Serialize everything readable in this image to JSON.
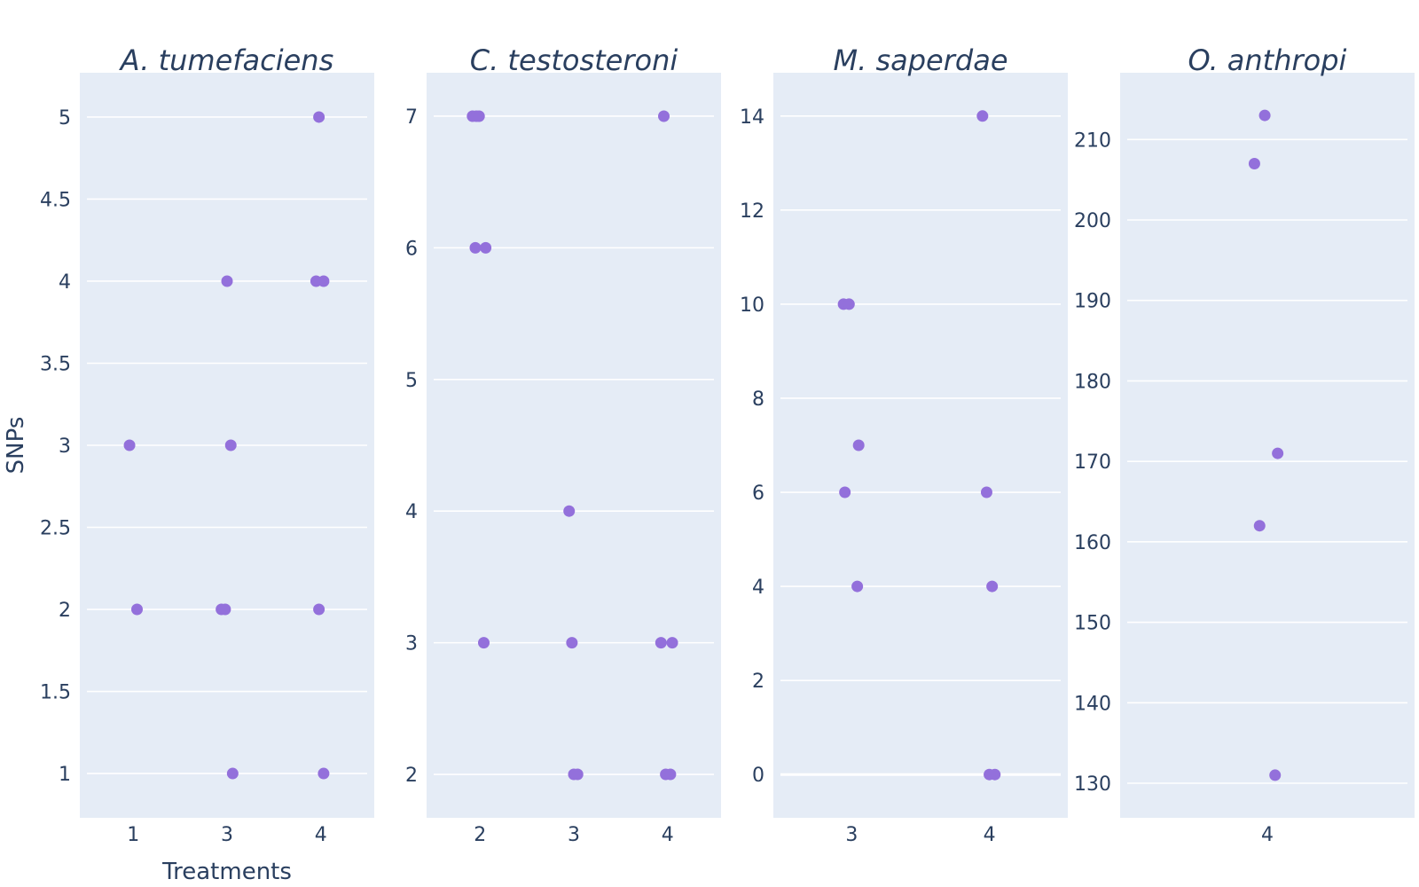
{
  "chart_data": {
    "type": "scatter",
    "xlabel": "Treatments",
    "ylabel": "SNPs",
    "marker_color": "#9370db",
    "panels": [
      {
        "title": "A. tumefaciens",
        "x_categories": [
          "1",
          "3",
          "4"
        ],
        "ylim": [
          0.73,
          5.27
        ],
        "yticks": [
          1,
          1.5,
          2,
          2.5,
          3,
          3.5,
          4,
          4.5,
          5
        ],
        "ytick_labels": [
          "1",
          "1.5",
          "2",
          "2.5",
          "3",
          "3.5",
          "4",
          "4.5",
          "5"
        ],
        "points": [
          {
            "x": "1",
            "y": 3,
            "jitter": -0.04
          },
          {
            "x": "1",
            "y": 2,
            "jitter": 0.04
          },
          {
            "x": "3",
            "y": 4,
            "jitter": 0.0
          },
          {
            "x": "3",
            "y": 3,
            "jitter": 0.04
          },
          {
            "x": "3",
            "y": 2,
            "jitter": -0.06
          },
          {
            "x": "3",
            "y": 2,
            "jitter": -0.02
          },
          {
            "x": "3",
            "y": 1,
            "jitter": 0.06
          },
          {
            "x": "4",
            "y": 5,
            "jitter": -0.02
          },
          {
            "x": "4",
            "y": 4,
            "jitter": -0.05
          },
          {
            "x": "4",
            "y": 4,
            "jitter": 0.03
          },
          {
            "x": "4",
            "y": 2,
            "jitter": -0.02
          },
          {
            "x": "4",
            "y": 1,
            "jitter": 0.03
          }
        ]
      },
      {
        "title": "C. testosteroni",
        "x_categories": [
          "2",
          "3",
          "4"
        ],
        "ylim": [
          1.67,
          7.33
        ],
        "yticks": [
          2,
          3,
          4,
          5,
          6,
          7
        ],
        "ytick_labels": [
          "2",
          "3",
          "4",
          "5",
          "6",
          "7"
        ],
        "points": [
          {
            "x": "2",
            "y": 7,
            "jitter": -0.08
          },
          {
            "x": "2",
            "y": 7,
            "jitter": -0.04
          },
          {
            "x": "2",
            "y": 7,
            "jitter": -0.01
          },
          {
            "x": "2",
            "y": 6,
            "jitter": -0.05
          },
          {
            "x": "2",
            "y": 6,
            "jitter": 0.06
          },
          {
            "x": "2",
            "y": 3,
            "jitter": 0.04
          },
          {
            "x": "3",
            "y": 4,
            "jitter": -0.05
          },
          {
            "x": "3",
            "y": 3,
            "jitter": -0.02
          },
          {
            "x": "3",
            "y": 2,
            "jitter": 0.0
          },
          {
            "x": "3",
            "y": 2,
            "jitter": 0.04
          },
          {
            "x": "4",
            "y": 7,
            "jitter": -0.04
          },
          {
            "x": "4",
            "y": 3,
            "jitter": -0.07
          },
          {
            "x": "4",
            "y": 3,
            "jitter": 0.05
          },
          {
            "x": "4",
            "y": 2,
            "jitter": -0.02
          },
          {
            "x": "4",
            "y": 2,
            "jitter": 0.03
          }
        ]
      },
      {
        "title": "M. saperdae",
        "x_categories": [
          "3",
          "4"
        ],
        "ylim": [
          -0.92,
          14.92
        ],
        "yticks": [
          0,
          2,
          4,
          6,
          8,
          10,
          12,
          14
        ],
        "ytick_labels": [
          "0",
          "2",
          "4",
          "6",
          "8",
          "10",
          "12",
          "14"
        ],
        "zero_line": true,
        "points": [
          {
            "x": "3",
            "y": 10,
            "jitter": -0.06
          },
          {
            "x": "3",
            "y": 10,
            "jitter": -0.02
          },
          {
            "x": "3",
            "y": 7,
            "jitter": 0.05
          },
          {
            "x": "3",
            "y": 6,
            "jitter": -0.05
          },
          {
            "x": "3",
            "y": 4,
            "jitter": 0.04
          },
          {
            "x": "4",
            "y": 14,
            "jitter": -0.05
          },
          {
            "x": "4",
            "y": 6,
            "jitter": -0.02
          },
          {
            "x": "4",
            "y": 4,
            "jitter": 0.02
          },
          {
            "x": "4",
            "y": 0,
            "jitter": 0.0
          },
          {
            "x": "4",
            "y": 0,
            "jitter": 0.04
          }
        ]
      },
      {
        "title": "O. anthropi",
        "x_categories": [
          "4"
        ],
        "ylim": [
          125.7,
          218.3
        ],
        "yticks": [
          130,
          140,
          150,
          160,
          170,
          180,
          190,
          200,
          210
        ],
        "ytick_labels": [
          "130",
          "140",
          "150",
          "160",
          "170",
          "180",
          "190",
          "200",
          "210"
        ],
        "points": [
          {
            "x": "4",
            "y": 213,
            "jitter": -0.01
          },
          {
            "x": "4",
            "y": 207,
            "jitter": -0.05
          },
          {
            "x": "4",
            "y": 171,
            "jitter": 0.04
          },
          {
            "x": "4",
            "y": 162,
            "jitter": -0.03
          },
          {
            "x": "4",
            "y": 131,
            "jitter": 0.03
          }
        ]
      }
    ]
  }
}
